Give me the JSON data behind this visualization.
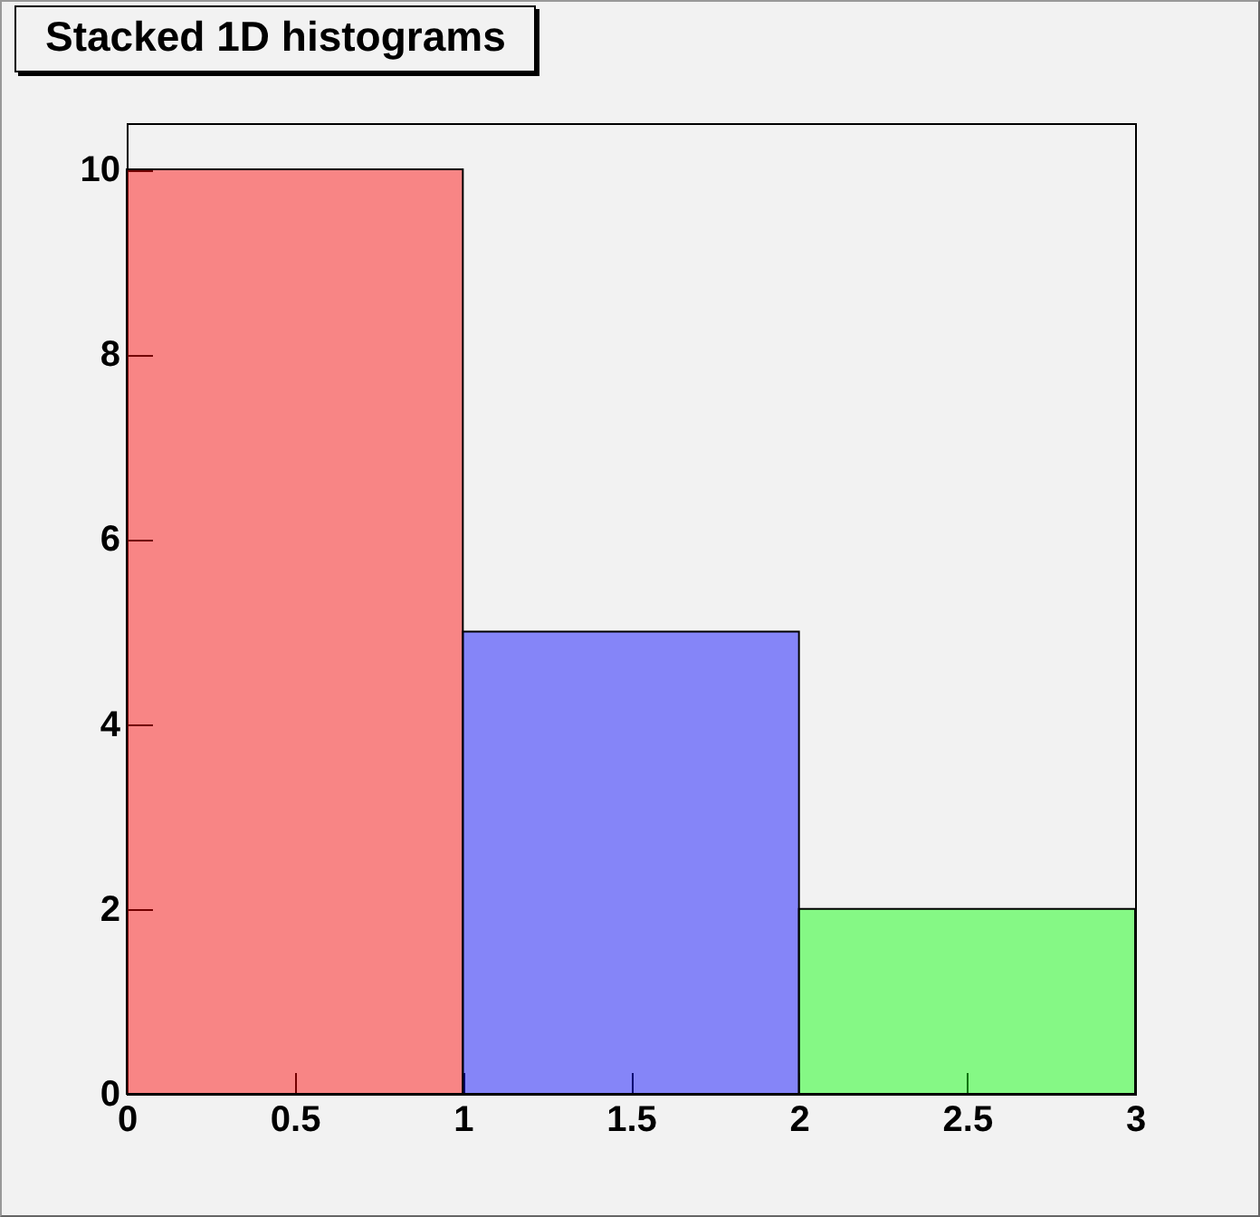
{
  "chart_data": {
    "type": "histogram",
    "title": "Stacked 1D histograms",
    "bins": [
      0,
      1,
      2,
      3
    ],
    "series": [
      {
        "color": "#ff0000",
        "values": [
          10,
          null,
          null
        ]
      },
      {
        "color": "#0000ff",
        "values": [
          null,
          5,
          null
        ]
      },
      {
        "color": "#00ff00",
        "values": [
          null,
          null,
          2
        ]
      }
    ],
    "xlim": [
      0,
      3
    ],
    "xticks": [
      0,
      0.5,
      1,
      1.5,
      2,
      2.5,
      3
    ],
    "ylim": [
      0,
      10.5
    ],
    "yticks": [
      0,
      2,
      4,
      6,
      8,
      10
    ],
    "grid": false
  }
}
